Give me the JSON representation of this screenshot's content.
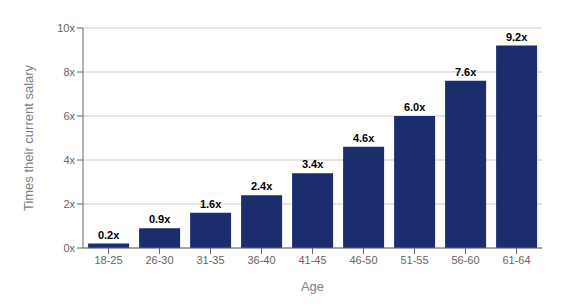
{
  "chart_data": {
    "type": "bar",
    "categories": [
      "18-25",
      "26-30",
      "31-35",
      "36-40",
      "41-45",
      "46-50",
      "51-55",
      "56-60",
      "61-64"
    ],
    "values": [
      0.2,
      0.9,
      1.6,
      2.4,
      3.4,
      4.6,
      6.0,
      7.6,
      9.2
    ],
    "value_labels": [
      "0.2x",
      "0.9x",
      "1.6x",
      "2.4x",
      "3.4x",
      "4.6x",
      "6.0x",
      "7.6x",
      "9.2x"
    ],
    "data_labels": true,
    "color": "#1c2d6e",
    "xlabel": "Age",
    "ylabel": "Times their current salary",
    "ylim": [
      0,
      10
    ],
    "yticks": [
      {
        "value": 0,
        "label": "0x"
      },
      {
        "value": 2,
        "label": "2x"
      },
      {
        "value": 4,
        "label": "4x"
      },
      {
        "value": 6,
        "label": "6x"
      },
      {
        "value": 8,
        "label": "8x"
      },
      {
        "value": 10,
        "label": "10x"
      }
    ],
    "grid": true
  }
}
